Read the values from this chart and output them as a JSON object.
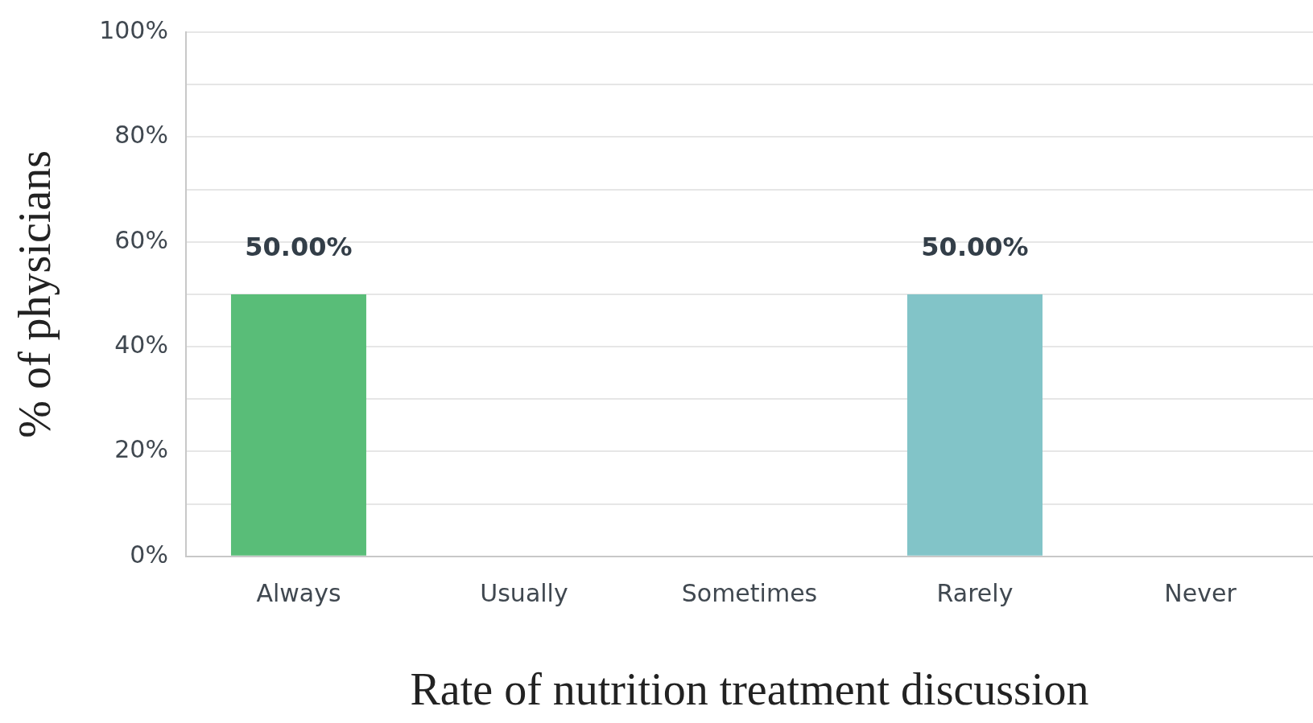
{
  "chart_data": {
    "type": "bar",
    "xlabel": "Rate of nutrition treatment discussion",
    "ylabel": "% of physicians",
    "categories": [
      "Always",
      "Usually",
      "Sometimes",
      "Rarely",
      "Never"
    ],
    "values": [
      50,
      0,
      0,
      50,
      0
    ],
    "value_labels": [
      "50.00%",
      null,
      null,
      "50.00%",
      null
    ],
    "colors": [
      "#59bd78",
      "#59bd78",
      "#59bd78",
      "#82c4c8",
      "#82c4c8"
    ],
    "ylim": [
      0,
      100
    ],
    "yticks": [
      {
        "value": 0,
        "label": "0%"
      },
      {
        "value": 10,
        "label": null
      },
      {
        "value": 20,
        "label": "20%"
      },
      {
        "value": 30,
        "label": null
      },
      {
        "value": 40,
        "label": "40%"
      },
      {
        "value": 50,
        "label": null
      },
      {
        "value": 60,
        "label": "60%"
      },
      {
        "value": 70,
        "label": null
      },
      {
        "value": 80,
        "label": "80%"
      },
      {
        "value": 90,
        "label": null
      },
      {
        "value": 100,
        "label": "100%"
      }
    ],
    "grid": "y",
    "legend": false
  }
}
